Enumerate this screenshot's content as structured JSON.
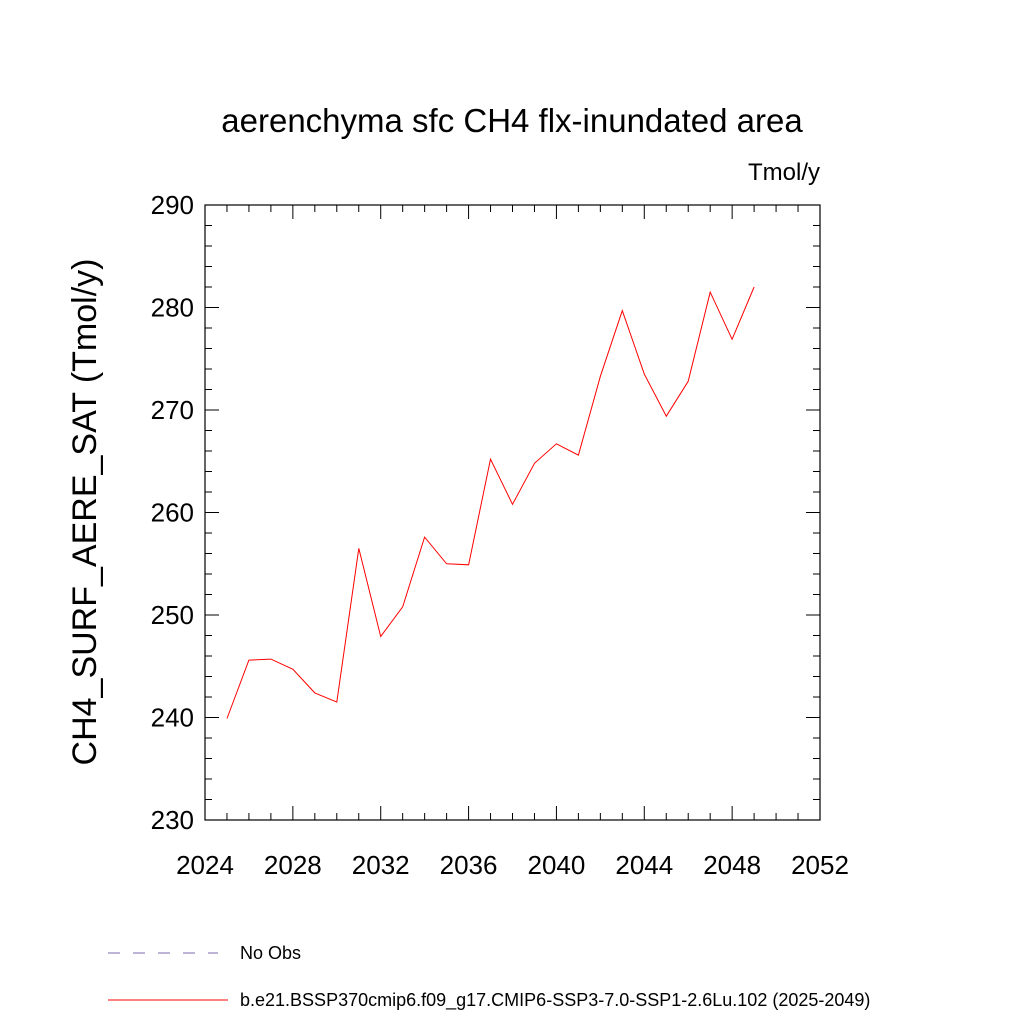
{
  "chart_data": {
    "type": "line",
    "title": "aerenchyma sfc CH4 flx-inundated area",
    "units": "Tmol/y",
    "ylabel": "CH4_SURF_AERE_SAT  (Tmol/y)",
    "xlabel": "",
    "xlim": [
      2024,
      2052
    ],
    "ylim": [
      230,
      290
    ],
    "xticks": [
      2024,
      2028,
      2032,
      2036,
      2040,
      2044,
      2048,
      2052
    ],
    "yticks": [
      230,
      240,
      250,
      260,
      270,
      280,
      290
    ],
    "grid": false,
    "legend_position": "bottom",
    "series": [
      {
        "name": "No Obs",
        "color": "#7b68b0",
        "dash": "dashed",
        "x": [],
        "y": []
      },
      {
        "name": "b.e21.BSSP370cmip6.f09_g17.CMIP6-SSP3-7.0-SSP1-2.6Lu.102 (2025-2049)",
        "color": "#ff0000",
        "dash": "solid",
        "x": [
          2025,
          2026,
          2027,
          2028,
          2029,
          2030,
          2031,
          2032,
          2033,
          2034,
          2035,
          2036,
          2037,
          2038,
          2039,
          2040,
          2041,
          2042,
          2043,
          2044,
          2045,
          2046,
          2047,
          2048,
          2049
        ],
        "y": [
          239.9,
          245.6,
          245.7,
          244.7,
          242.4,
          241.5,
          256.5,
          247.9,
          250.8,
          257.6,
          255.0,
          254.9,
          265.2,
          260.8,
          264.8,
          266.7,
          265.6,
          273.3,
          279.7,
          273.5,
          269.4,
          272.8,
          281.5,
          276.9,
          282.0
        ]
      }
    ]
  }
}
